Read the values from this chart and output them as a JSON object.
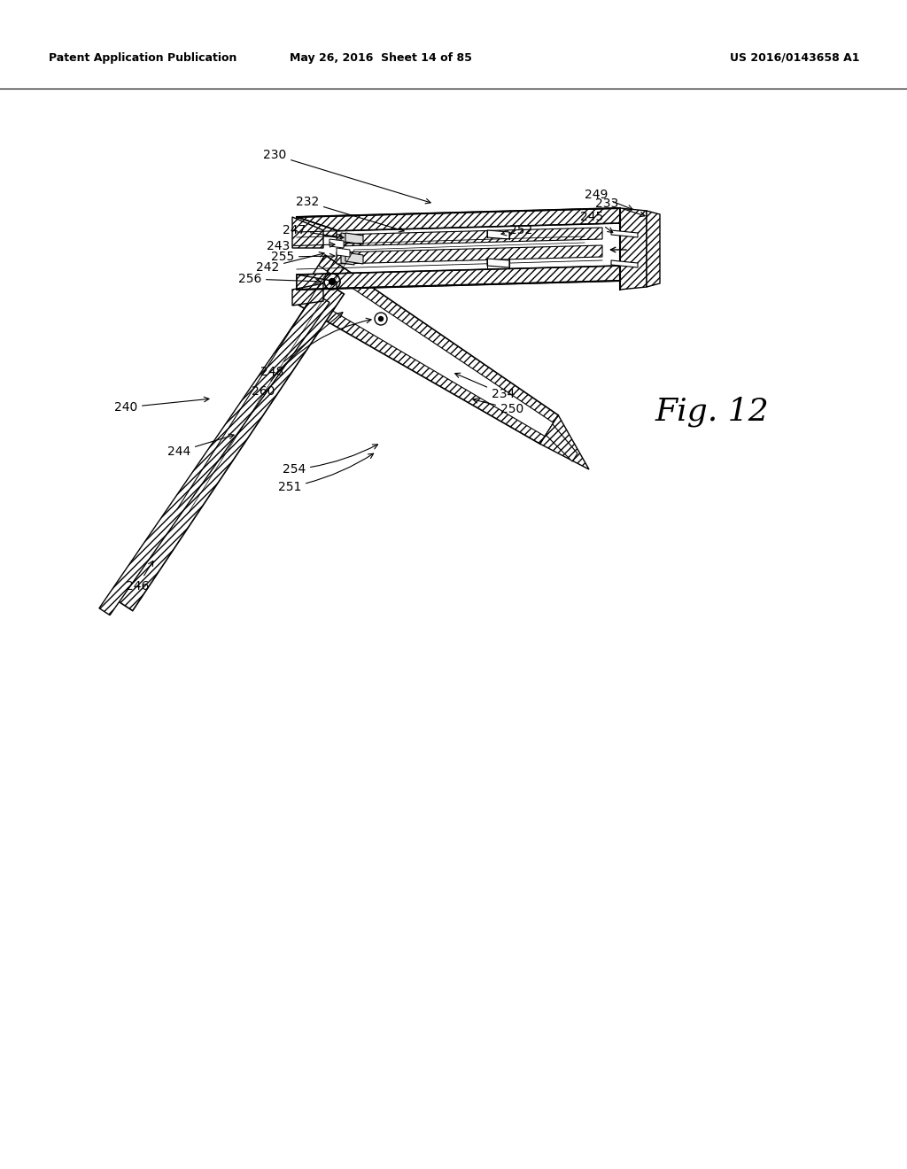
{
  "header_left": "Patent Application Publication",
  "header_mid": "May 26, 2016  Sheet 14 of 85",
  "header_right": "US 2016/0143658 A1",
  "fig_label": "Fig. 12",
  "background_color": "#ffffff",
  "line_color": "#000000"
}
